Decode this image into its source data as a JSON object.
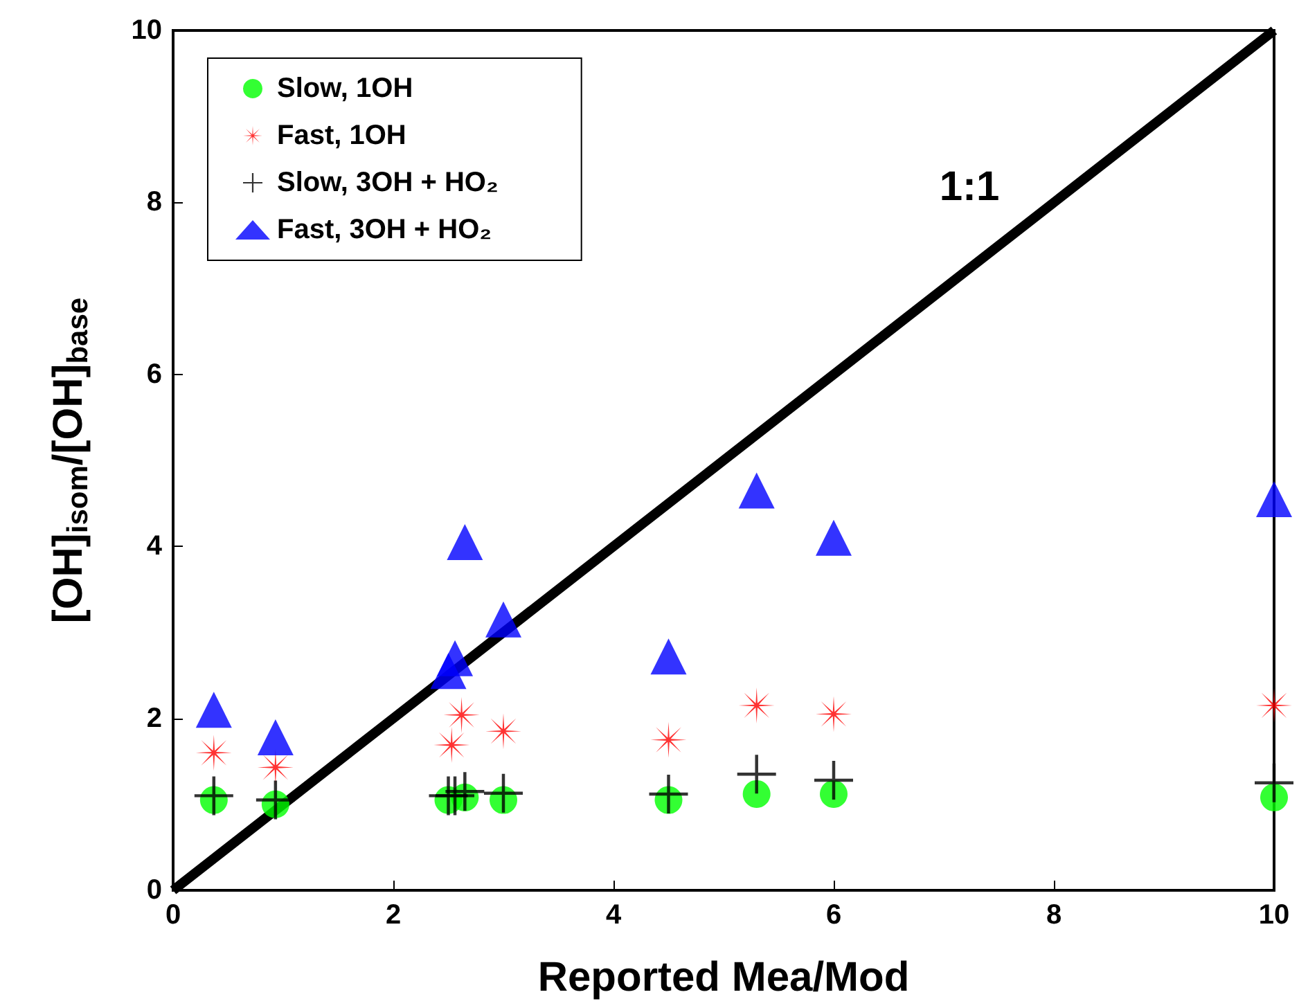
{
  "chart_data": {
    "type": "scatter",
    "xlabel": "Reported Mea/Mod",
    "ylabel": "[OH]$_{isom}$/[OH]$_{base}$",
    "xlim": [
      0,
      10
    ],
    "ylim": [
      0,
      10
    ],
    "xticks": [
      0,
      2,
      4,
      6,
      8,
      10
    ],
    "yticks": [
      0,
      2,
      4,
      6,
      8,
      10
    ],
    "grid": false,
    "legend": "top left",
    "annotations": [
      "1:1"
    ],
    "series": [
      {
        "name": "Slow, 1OH",
        "color": "#00ff00",
        "marker": "circle",
        "x": [
          0.37,
          0.93,
          2.5,
          2.65,
          3.0,
          4.5,
          5.3,
          6.0,
          10
        ],
        "values": [
          1.05,
          1.0,
          1.05,
          1.08,
          1.05,
          1.05,
          1.12,
          1.12,
          1.08
        ]
      },
      {
        "name": "Fast, 1OH",
        "color": "#ff0000",
        "marker": "star",
        "x": [
          0.37,
          0.93,
          2.53,
          2.62,
          3.0,
          4.5,
          5.3,
          6.0,
          10
        ],
        "values": [
          1.6,
          1.43,
          1.69,
          2.04,
          1.85,
          1.75,
          2.15,
          2.05,
          2.15
        ]
      },
      {
        "name": "Slow, 3OH + HO₂",
        "color": "#000000",
        "marker": "cross",
        "x": [
          0.37,
          0.93,
          2.5,
          2.56,
          2.65,
          3.0,
          4.5,
          5.3,
          6.0,
          10
        ],
        "values": [
          1.1,
          1.05,
          1.1,
          1.1,
          1.15,
          1.13,
          1.12,
          1.35,
          1.28,
          1.25
        ]
      },
      {
        "name": "Fast, 3OH + HO₂",
        "color": "#0000ff",
        "marker": "triangle",
        "x": [
          0.37,
          0.93,
          2.5,
          2.56,
          2.65,
          3.0,
          4.5,
          5.3,
          6.0,
          10
        ],
        "values": [
          2.1,
          1.78,
          2.55,
          2.7,
          4.05,
          3.15,
          2.72,
          4.65,
          4.1,
          4.55
        ]
      },
      {
        "type": "line",
        "color": "#000000",
        "marker": "none",
        "line_style": "solid",
        "x": [
          0,
          10
        ],
        "values": [
          0,
          10
        ]
      }
    ]
  }
}
